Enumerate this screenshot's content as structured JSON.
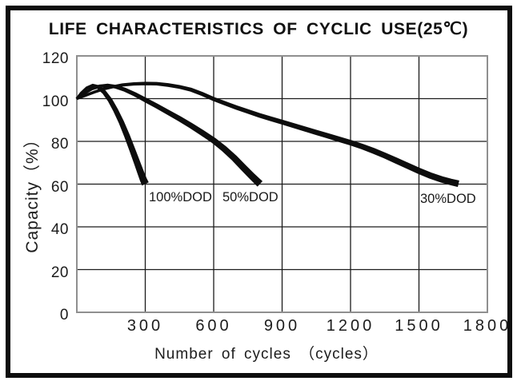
{
  "title": "LIFE CHARACTERISTICS OF CYCLIC USE(25℃)",
  "chart_data": {
    "type": "line",
    "title": "LIFE CHARACTERISTICS OF CYCLIC USE(25℃)",
    "xlabel": "Number of cycles （cycles）",
    "ylabel": "Capacity（%）",
    "xlim": [
      0,
      1800
    ],
    "ylim": [
      0,
      120
    ],
    "x_ticks": [
      300,
      600,
      900,
      1200,
      1500,
      1800
    ],
    "y_ticks": [
      120,
      100,
      80,
      60,
      40,
      20,
      0
    ],
    "grid": true,
    "legend_position": "inline-labels-below-curves",
    "curve_color": "#0d0d0d",
    "grid_color": "#1c1c1c",
    "plot_border_color": "#8f8f8f",
    "series": [
      {
        "name": "100%DOD",
        "band_width_start": 2.5,
        "band_width_end": 8.5,
        "points": [
          [
            0,
            100
          ],
          [
            20,
            102.6
          ],
          [
            45,
            105
          ],
          [
            70,
            106.1
          ],
          [
            95,
            105.4
          ],
          [
            120,
            103
          ],
          [
            145,
            99.4
          ],
          [
            170,
            94.6
          ],
          [
            195,
            89
          ],
          [
            220,
            82.6
          ],
          [
            245,
            75.6
          ],
          [
            265,
            69.8
          ],
          [
            280,
            65.4
          ],
          [
            292,
            62
          ],
          [
            300,
            60.2
          ]
        ]
      },
      {
        "name": "50%DOD",
        "band_width_start": 2.5,
        "band_width_end": 8.5,
        "points": [
          [
            0,
            100
          ],
          [
            30,
            102.3
          ],
          [
            65,
            104.6
          ],
          [
            100,
            105.8
          ],
          [
            135,
            106.2
          ],
          [
            170,
            105.6
          ],
          [
            210,
            104.2
          ],
          [
            255,
            102
          ],
          [
            300,
            99.4
          ],
          [
            350,
            96.6
          ],
          [
            400,
            93.6
          ],
          [
            450,
            90.6
          ],
          [
            500,
            87.4
          ],
          [
            550,
            84
          ],
          [
            600,
            80.4
          ],
          [
            645,
            76.6
          ],
          [
            690,
            72.2
          ],
          [
            730,
            67.8
          ],
          [
            765,
            64
          ],
          [
            790,
            61.4
          ],
          [
            802,
            60.2
          ]
        ]
      },
      {
        "name": "30%DOD",
        "band_width_start": 2.5,
        "band_width_end": 7.5,
        "points": [
          [
            0,
            100
          ],
          [
            40,
            101.6
          ],
          [
            80,
            103.2
          ],
          [
            120,
            104.6
          ],
          [
            160,
            105.6
          ],
          [
            200,
            106.4
          ],
          [
            250,
            106.9
          ],
          [
            300,
            107.1
          ],
          [
            350,
            107
          ],
          [
            400,
            106.4
          ],
          [
            450,
            105.5
          ],
          [
            500,
            104.2
          ],
          [
            550,
            102.2
          ],
          [
            600,
            99.8
          ],
          [
            650,
            97.8
          ],
          [
            700,
            95.8
          ],
          [
            750,
            94
          ],
          [
            800,
            92.2
          ],
          [
            850,
            90.6
          ],
          [
            900,
            89
          ],
          [
            950,
            87.4
          ],
          [
            1000,
            85.8
          ],
          [
            1050,
            84.2
          ],
          [
            1100,
            82.6
          ],
          [
            1150,
            81
          ],
          [
            1200,
            79.4
          ],
          [
            1250,
            77.6
          ],
          [
            1300,
            75.6
          ],
          [
            1350,
            73.4
          ],
          [
            1400,
            71
          ],
          [
            1450,
            68.6
          ],
          [
            1500,
            66.2
          ],
          [
            1550,
            64
          ],
          [
            1600,
            62.2
          ],
          [
            1640,
            61
          ],
          [
            1672,
            60.2
          ]
        ]
      }
    ]
  }
}
